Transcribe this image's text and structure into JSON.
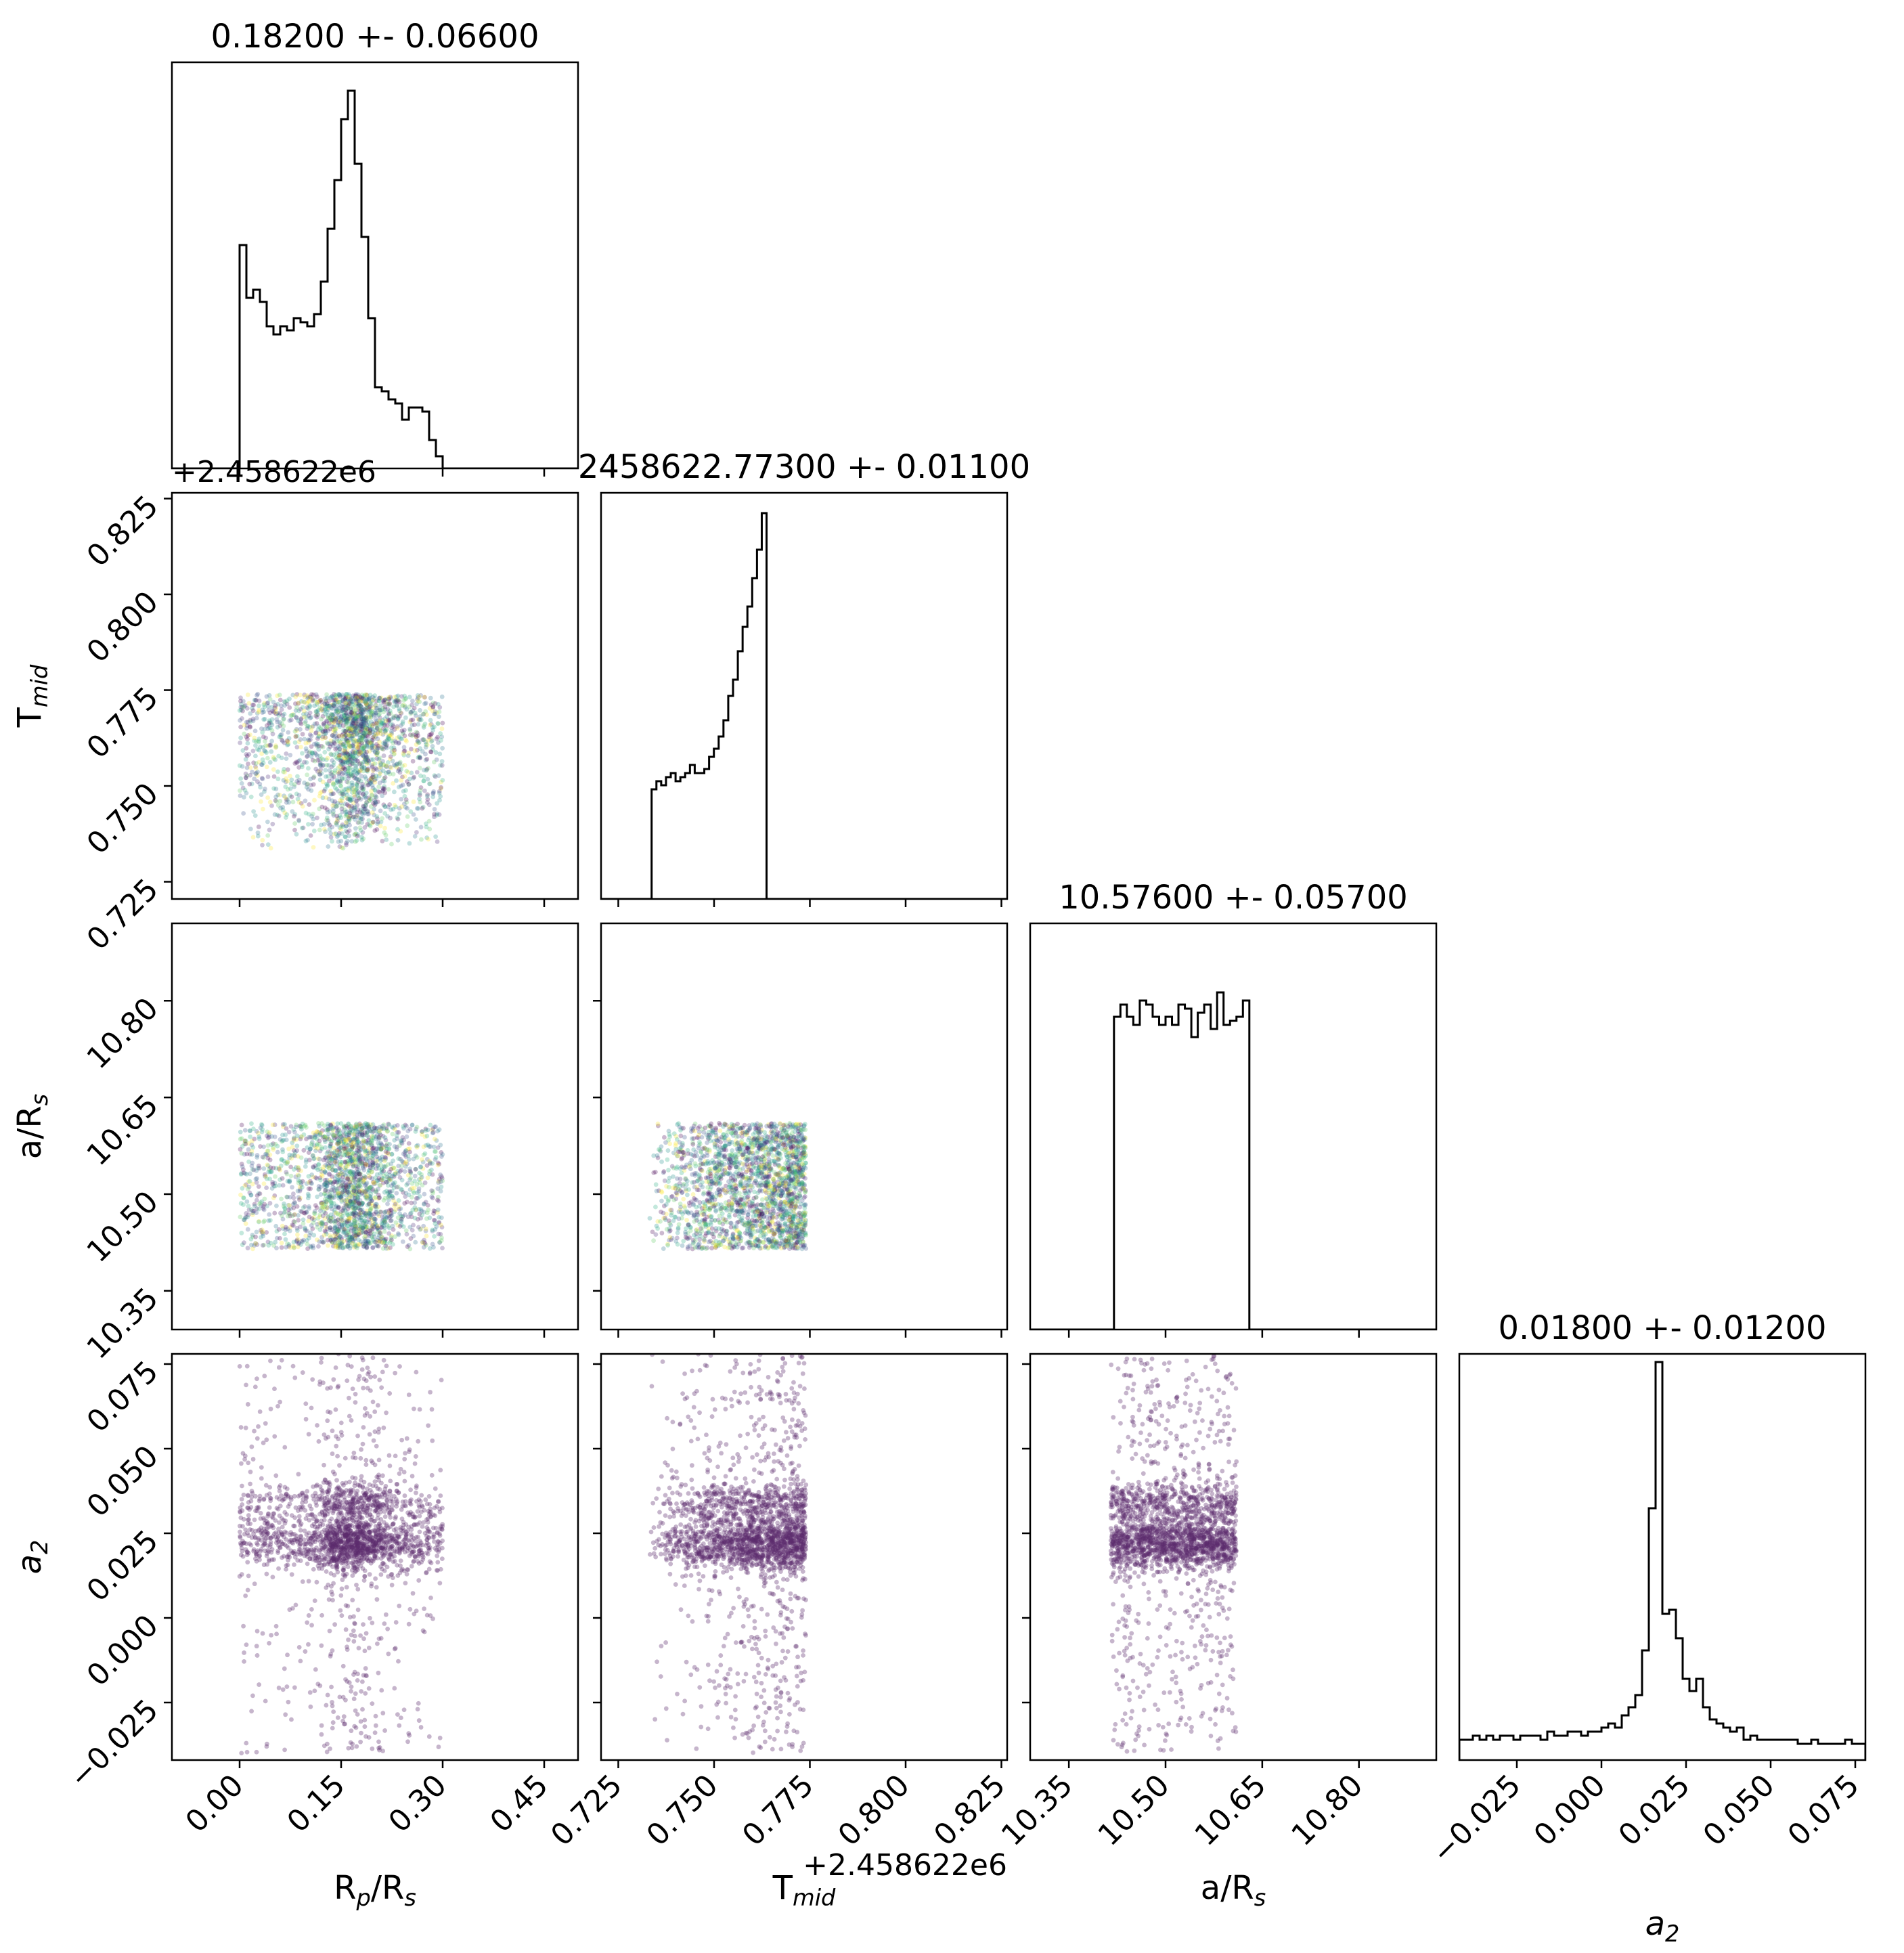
{
  "chart_data": {
    "type": "corner",
    "parameters": [
      {
        "key": "rp",
        "label": "R",
        "sub": "p",
        "label2": "/R",
        "sub2": "s",
        "title": "0.18200 +- 0.06600",
        "range": [
          -0.1,
          0.5
        ],
        "ticks": [
          0.0,
          0.15,
          0.3,
          0.45
        ],
        "tick_labels": [
          "0.00",
          "0.15",
          "0.30",
          "0.45"
        ]
      },
      {
        "key": "tmid",
        "label": "T",
        "sub": "mid",
        "label2": "",
        "sub2": "",
        "title": "2458622.77300 +- 0.01100",
        "range": [
          0.7205,
          0.8265
        ],
        "ticks": [
          0.725,
          0.75,
          0.775,
          0.8,
          0.825
        ],
        "tick_labels": [
          "0.725",
          "0.750",
          "0.775",
          "0.800",
          "0.825"
        ],
        "offset": "+2.458622e6"
      },
      {
        "key": "ars",
        "label": "a/R",
        "sub": "s",
        "label2": "",
        "sub2": "",
        "title": "10.57600 +- 0.05700",
        "range": [
          10.29,
          10.92
        ],
        "ticks": [
          10.35,
          10.5,
          10.65,
          10.8
        ],
        "tick_labels": [
          "10.35",
          "10.50",
          "10.65",
          "10.80"
        ]
      },
      {
        "key": "a2",
        "label": "a",
        "sub": "2",
        "label2": "",
        "sub2": "",
        "italic": true,
        "title": "0.01800 +- 0.01200",
        "range": [
          -0.042,
          0.078
        ],
        "ticks": [
          -0.025,
          0.0,
          0.025,
          0.05,
          0.075
        ],
        "tick_labels": [
          "−0.025",
          "0.000",
          "0.025",
          "0.050",
          "0.075"
        ]
      }
    ],
    "histograms": {
      "rp": {
        "x0": -0.01,
        "bin": 0.01,
        "values": [
          0.0,
          0.55,
          0.42,
          0.44,
          0.41,
          0.35,
          0.33,
          0.35,
          0.34,
          0.37,
          0.36,
          0.35,
          0.38,
          0.46,
          0.59,
          0.71,
          0.86,
          0.93,
          0.75,
          0.57,
          0.37,
          0.2,
          0.19,
          0.17,
          0.16,
          0.12,
          0.15,
          0.15,
          0.14,
          0.07,
          0.03,
          0.0
        ]
      },
      "tmid": {
        "x0": 0.7337,
        "bin": 0.00125,
        "values": [
          0.27,
          0.29,
          0.28,
          0.3,
          0.31,
          0.29,
          0.3,
          0.31,
          0.33,
          0.31,
          0.31,
          0.32,
          0.35,
          0.37,
          0.4,
          0.44,
          0.5,
          0.54,
          0.61,
          0.67,
          0.72,
          0.79,
          0.86,
          0.95,
          0.0
        ]
      },
      "ars": {
        "x0": 10.42,
        "bin": 0.01,
        "values": [
          0.77,
          0.8,
          0.77,
          0.75,
          0.81,
          0.8,
          0.77,
          0.75,
          0.77,
          0.75,
          0.8,
          0.79,
          0.72,
          0.78,
          0.8,
          0.74,
          0.83,
          0.75,
          0.76,
          0.77,
          0.81,
          0.0
        ]
      },
      "a2": {
        "x0": -0.042,
        "bin": 0.002,
        "values": [
          0.05,
          0.05,
          0.06,
          0.05,
          0.06,
          0.05,
          0.06,
          0.06,
          0.05,
          0.06,
          0.06,
          0.06,
          0.05,
          0.07,
          0.06,
          0.06,
          0.07,
          0.07,
          0.06,
          0.07,
          0.07,
          0.08,
          0.09,
          0.08,
          0.11,
          0.13,
          0.16,
          0.27,
          0.62,
          0.98,
          0.36,
          0.37,
          0.3,
          0.2,
          0.17,
          0.2,
          0.13,
          0.1,
          0.09,
          0.08,
          0.07,
          0.08,
          0.05,
          0.06,
          0.05,
          0.05,
          0.05,
          0.05,
          0.05,
          0.05,
          0.04,
          0.04,
          0.05,
          0.04,
          0.04,
          0.04,
          0.04,
          0.05,
          0.04,
          0.04
        ]
      }
    }
  }
}
